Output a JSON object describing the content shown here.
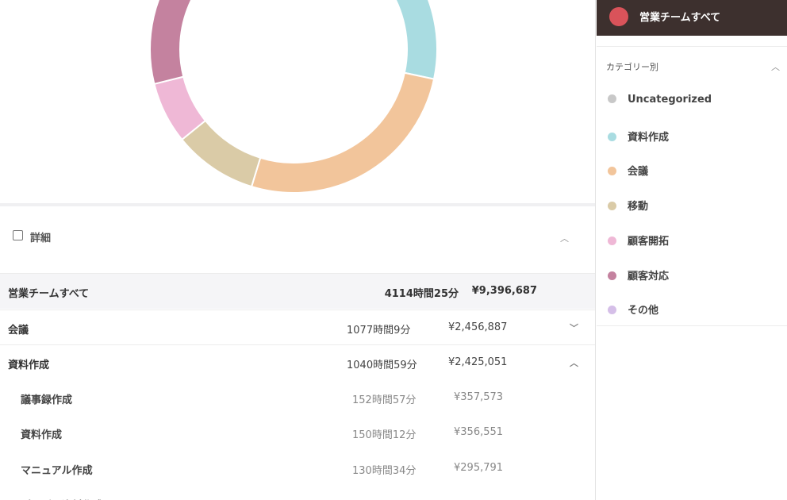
{
  "sidebar": {
    "team": "営業チームすべて",
    "section": "カテゴリー別",
    "categories": [
      {
        "name": "Uncategorized",
        "color": "#c8c8c8"
      },
      {
        "name": "資料作成",
        "color": "#a9dce1"
      },
      {
        "name": "会議",
        "color": "#f2c59b"
      },
      {
        "name": "移動",
        "color": "#dacba7"
      },
      {
        "name": "顧客開拓",
        "color": "#efb8d6"
      },
      {
        "name": "顧客対応",
        "color": "#c4829f"
      },
      {
        "name": "その他",
        "color": "#d5bfe8"
      }
    ]
  },
  "details": {
    "title": "詳細",
    "total": {
      "name": "営業チームすべて",
      "time": "4114時間25分",
      "amount": "¥9,396,687"
    },
    "rows": [
      {
        "name": "会議",
        "time": "1077時間9分",
        "amount": "¥2,456,887",
        "level": 0,
        "open": false
      },
      {
        "name": "資料作成",
        "time": "1040時間59分",
        "amount": "¥2,425,051",
        "level": 0,
        "open": true
      },
      {
        "name": "議事録作成",
        "time": "152時間57分",
        "amount": "¥357,573",
        "level": 1
      },
      {
        "name": "資料作成",
        "time": "150時間12分",
        "amount": "¥356,551",
        "level": 1
      },
      {
        "name": "マニュアル作成",
        "time": "130時間34分",
        "amount": "¥295,791",
        "level": 1
      },
      {
        "name": "プレゼン資料作成",
        "level": 1
      }
    ]
  }
}
